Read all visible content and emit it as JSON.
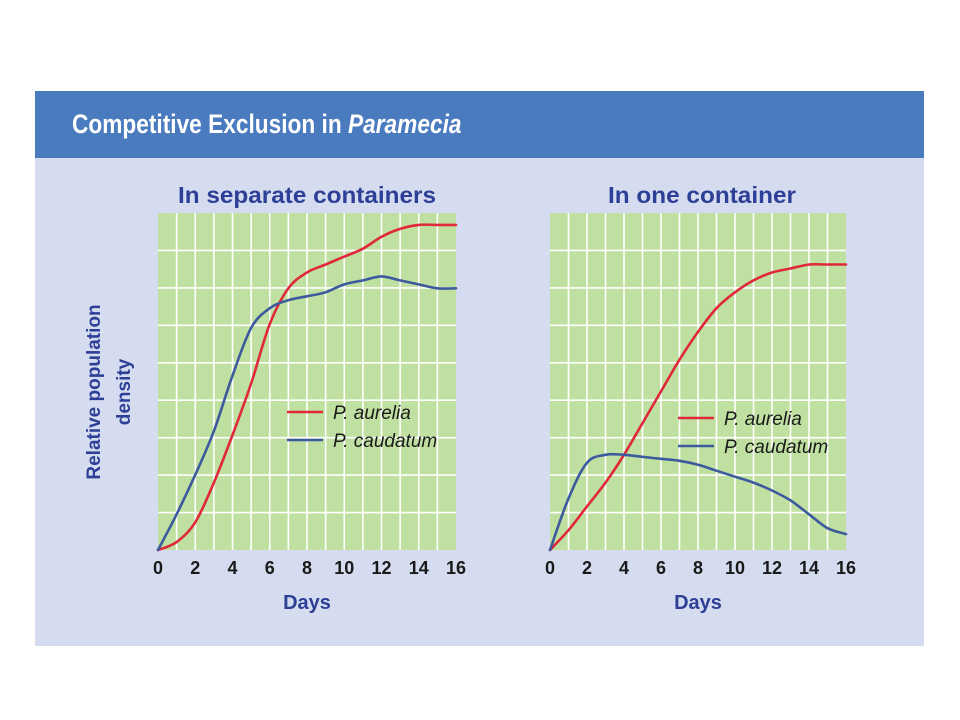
{
  "figure": {
    "title_main": "Competitive Exclusion in ",
    "title_italic": "Paramecia"
  },
  "colors": {
    "banner": "#4a7bbf",
    "panel_background": "#d5dcef",
    "plot_area": "#bfe0a0",
    "grid": "#ffffff",
    "p_aurelia": "#e0283a",
    "p_caudatum": "#3d5a9e",
    "label_text": "#2d3f96"
  },
  "y_axis_label_lines": [
    "Relative population",
    "density"
  ],
  "chart_data": [
    {
      "type": "line",
      "title": "In separate containers",
      "xlabel": "Days",
      "ylabel": "Relative population density",
      "xlim": [
        0,
        16
      ],
      "ylim": [
        0,
        8.5
      ],
      "x_ticks": [
        0,
        2,
        4,
        6,
        8,
        10,
        12,
        14,
        16
      ],
      "grid": true,
      "legend_position": "center-right",
      "series": [
        {
          "name": "P. aurelia",
          "color": "#e0283a",
          "x": [
            0,
            1,
            2,
            3,
            4,
            5,
            6,
            7,
            8,
            9,
            10,
            11,
            12,
            13,
            14,
            15,
            16
          ],
          "y": [
            0,
            0.2,
            0.7,
            1.7,
            2.9,
            4.2,
            5.7,
            6.6,
            7.0,
            7.2,
            7.4,
            7.6,
            7.9,
            8.1,
            8.2,
            8.2,
            8.2
          ]
        },
        {
          "name": "P. caudatum",
          "color": "#3d5a9e",
          "x": [
            0,
            1,
            2,
            3,
            4,
            5,
            6,
            7,
            8,
            9,
            10,
            11,
            12,
            13,
            14,
            15,
            16
          ],
          "y": [
            0,
            0.9,
            1.9,
            3.0,
            4.4,
            5.6,
            6.1,
            6.3,
            6.4,
            6.5,
            6.7,
            6.8,
            6.9,
            6.8,
            6.7,
            6.6,
            6.6
          ]
        }
      ]
    },
    {
      "type": "line",
      "title": "In one container",
      "xlabel": "Days",
      "ylabel": "Relative population density",
      "xlim": [
        0,
        16
      ],
      "ylim": [
        0,
        8.5
      ],
      "x_ticks": [
        0,
        2,
        4,
        6,
        8,
        10,
        12,
        14,
        16
      ],
      "grid": true,
      "legend_position": "center-right",
      "series": [
        {
          "name": "P. aurelia",
          "color": "#e0283a",
          "x": [
            0,
            1,
            2,
            3,
            4,
            5,
            6,
            7,
            8,
            9,
            10,
            11,
            12,
            13,
            14,
            15,
            16
          ],
          "y": [
            0,
            0.5,
            1.1,
            1.7,
            2.4,
            3.2,
            4.0,
            4.8,
            5.5,
            6.1,
            6.5,
            6.8,
            7.0,
            7.1,
            7.2,
            7.2,
            7.2
          ]
        },
        {
          "name": "P. caudatum",
          "color": "#3d5a9e",
          "x": [
            0,
            1,
            2,
            3,
            4,
            5,
            6,
            7,
            8,
            9,
            10,
            11,
            12,
            13,
            14,
            15,
            16
          ],
          "y": [
            0,
            1.3,
            2.2,
            2.4,
            2.4,
            2.35,
            2.3,
            2.25,
            2.15,
            2.0,
            1.85,
            1.7,
            1.5,
            1.25,
            0.9,
            0.55,
            0.4
          ]
        }
      ]
    }
  ]
}
